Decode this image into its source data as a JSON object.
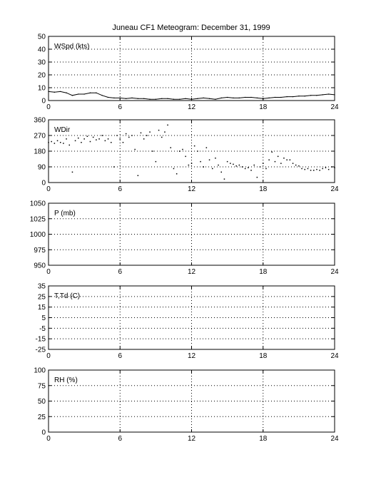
{
  "title": "Juneau CF1 Meteogram:  December 31, 1999",
  "chart_data": [
    {
      "type": "line",
      "label": "WSpd (kts)",
      "ylim": [
        0,
        50
      ],
      "yticks": [
        0,
        10,
        20,
        30,
        40,
        50
      ],
      "xlim": [
        0,
        24
      ],
      "xticks": [
        0,
        6,
        12,
        18,
        24
      ],
      "grid": true,
      "x": [
        0,
        0.5,
        1,
        1.5,
        2,
        2.5,
        3,
        3.5,
        4,
        4.5,
        5,
        5.5,
        6,
        6.5,
        7,
        7.5,
        8,
        8.5,
        9,
        9.5,
        10,
        10.5,
        11,
        11.5,
        12,
        12.5,
        13,
        13.5,
        14,
        14.5,
        15,
        15.5,
        16,
        16.5,
        17,
        17.5,
        18,
        18.5,
        19,
        19.5,
        20,
        20.5,
        21,
        21.5,
        22,
        22.5,
        23,
        23.5,
        24
      ],
      "values": [
        7,
        6.5,
        7,
        6,
        4,
        5,
        5,
        6,
        6,
        4,
        2.5,
        2,
        2,
        1.5,
        2,
        1.5,
        1.5,
        1,
        1,
        1.5,
        1.5,
        1,
        1,
        1.5,
        1,
        1.5,
        2,
        1.5,
        1,
        2,
        2.5,
        2,
        2,
        2.5,
        2.5,
        2,
        1.5,
        2,
        2.5,
        2.5,
        3,
        3,
        3.5,
        3.5,
        4,
        4,
        4.5,
        5,
        4.5
      ]
    },
    {
      "type": "scatter",
      "label": "WDir",
      "ylim": [
        0,
        360
      ],
      "yticks": [
        0,
        90,
        180,
        270,
        360
      ],
      "xlim": [
        0,
        24
      ],
      "xticks": [
        0,
        6,
        12,
        18,
        24
      ],
      "grid": true,
      "x": [
        0,
        0.25,
        0.5,
        0.75,
        1,
        1.25,
        1.5,
        1.75,
        2,
        2.25,
        2.5,
        2.75,
        3,
        3.25,
        3.5,
        3.75,
        4,
        4.25,
        4.5,
        4.75,
        5,
        5.25,
        5.5,
        5.75,
        6,
        6.25,
        6.5,
        6.75,
        7,
        7.25,
        7.5,
        7.75,
        8,
        8.25,
        8.5,
        8.75,
        9,
        9.25,
        9.5,
        9.75,
        10,
        10.25,
        10.5,
        10.75,
        11,
        11.25,
        11.5,
        11.75,
        12,
        12.25,
        12.5,
        12.75,
        13,
        13.25,
        13.5,
        13.75,
        14,
        14.25,
        14.5,
        14.75,
        15,
        15.25,
        15.5,
        15.75,
        16,
        16.25,
        16.5,
        16.75,
        17,
        17.25,
        17.5,
        17.75,
        18,
        18.25,
        18.5,
        18.75,
        19,
        19.25,
        19.5,
        19.75,
        20,
        20.25,
        20.5,
        20.75,
        21,
        21.25,
        21.5,
        21.75,
        22,
        22.25,
        22.5,
        22.75,
        23,
        23.25,
        23.5,
        23.75,
        24
      ],
      "values": [
        230,
        235,
        225,
        240,
        230,
        225,
        250,
        215,
        60,
        240,
        255,
        230,
        250,
        265,
        235,
        260,
        245,
        250,
        270,
        240,
        250,
        230,
        90,
        270,
        250,
        230,
        280,
        260,
        270,
        190,
        40,
        285,
        250,
        270,
        290,
        180,
        120,
        300,
        260,
        290,
        330,
        200,
        80,
        50,
        180,
        190,
        150,
        100,
        110,
        210,
        180,
        120,
        90,
        200,
        130,
        80,
        140,
        100,
        60,
        20,
        120,
        110,
        105,
        95,
        100,
        90,
        80,
        85,
        70,
        100,
        30,
        90,
        110,
        80,
        130,
        175,
        120,
        150,
        110,
        140,
        130,
        130,
        110,
        100,
        95,
        80,
        75,
        80,
        70,
        70,
        75,
        70,
        80,
        85,
        75,
        90,
        85
      ]
    },
    {
      "type": "line",
      "label": "P (mb)",
      "ylim": [
        950,
        1050
      ],
      "yticks": [
        950,
        975,
        1000,
        1025,
        1050
      ],
      "xlim": [
        0,
        24
      ],
      "xticks": [
        0,
        6,
        12,
        18,
        24
      ],
      "grid": true,
      "values": []
    },
    {
      "type": "line",
      "label": "T,Td (C)",
      "ylim": [
        -25,
        35
      ],
      "yticks": [
        -25,
        -15,
        -5,
        5,
        15,
        25,
        35
      ],
      "xlim": [
        0,
        24
      ],
      "xticks": [
        0,
        6,
        12,
        18,
        24
      ],
      "grid": true,
      "values": []
    },
    {
      "type": "line",
      "label": "RH (%)",
      "ylim": [
        0,
        100
      ],
      "yticks": [
        0,
        25,
        50,
        75,
        100
      ],
      "xlim": [
        0,
        24
      ],
      "xticks": [
        0,
        6,
        12,
        18,
        24
      ],
      "grid": true,
      "values": []
    }
  ]
}
